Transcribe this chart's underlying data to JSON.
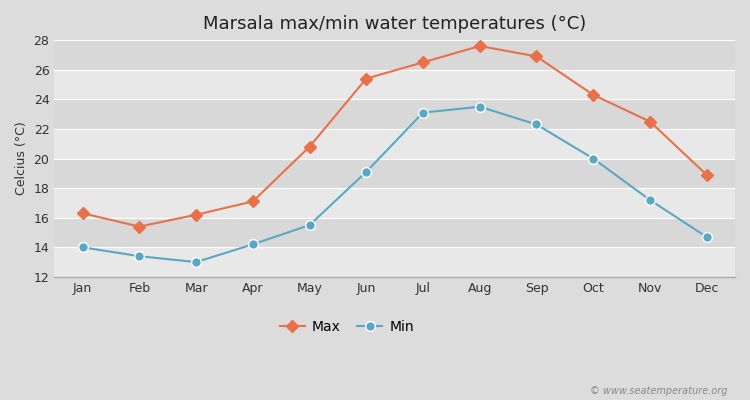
{
  "title": "Marsala max/min water temperatures (°C)",
  "ylabel": "Celcius (°C)",
  "months": [
    "Jan",
    "Feb",
    "Mar",
    "Apr",
    "May",
    "Jun",
    "Jul",
    "Aug",
    "Sep",
    "Oct",
    "Nov",
    "Dec"
  ],
  "max_temps": [
    16.3,
    15.4,
    16.2,
    17.1,
    20.8,
    25.4,
    26.5,
    27.6,
    26.9,
    24.3,
    22.5,
    18.9
  ],
  "min_temps": [
    14.0,
    13.4,
    13.0,
    14.2,
    15.5,
    19.1,
    23.1,
    23.5,
    22.3,
    20.0,
    17.2,
    14.7
  ],
  "max_color": "#E8714A",
  "min_color": "#5BA8C4",
  "ylim": [
    12,
    28
  ],
  "yticks": [
    12,
    14,
    16,
    18,
    20,
    22,
    24,
    26,
    28
  ],
  "bg_outer": "#DCDCDC",
  "bg_stripe_dark": "#D8D8D8",
  "bg_stripe_light": "#E8E8E8",
  "grid_color": "#FFFFFF",
  "watermark": "© www.seatemperature.org",
  "legend_labels": [
    "Max",
    "Min"
  ],
  "title_fontsize": 13,
  "label_fontsize": 9,
  "tick_fontsize": 9
}
